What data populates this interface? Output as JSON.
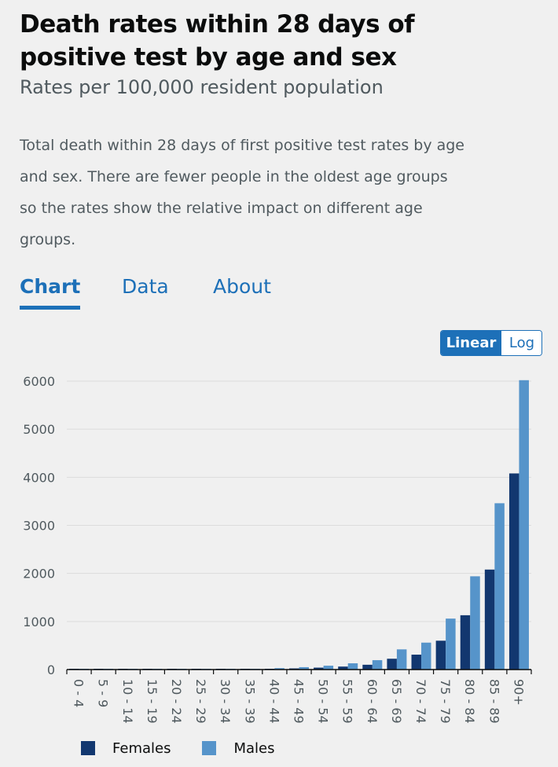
{
  "header": {
    "title": "Death rates within 28 days of positive test by age and sex",
    "subtitle": "Rates per 100,000 resident population",
    "description": "Total death within 28 days of first positive test rates by age and sex. There are fewer people in the oldest age groups so the rates show the relative impact on different age groups."
  },
  "tabs": [
    {
      "label": "Chart",
      "active": true
    },
    {
      "label": "Data",
      "active": false
    },
    {
      "label": "About",
      "active": false
    }
  ],
  "scale_toggle": {
    "linear_label": "Linear",
    "log_label": "Log",
    "selected": "Linear"
  },
  "colors": {
    "females": "#12376f",
    "males": "#5694ca",
    "accent": "#1d70b8"
  },
  "legend": [
    {
      "label": "Females",
      "color": "#12376f"
    },
    {
      "label": "Males",
      "color": "#5694ca"
    }
  ],
  "chart_data": {
    "type": "bar",
    "categories": [
      "0 - 4",
      "5 - 9",
      "10 - 14",
      "15 - 19",
      "20 - 24",
      "25 - 29",
      "30 - 34",
      "35 - 39",
      "40 - 44",
      "45 - 49",
      "50 - 54",
      "55 - 59",
      "60 - 64",
      "65 - 69",
      "70 - 74",
      "75 - 79",
      "80 - 84",
      "85 - 89",
      "90+"
    ],
    "series": [
      {
        "name": "Females",
        "values": [
          1,
          0,
          1,
          1,
          2,
          3,
          5,
          7,
          13,
          24,
          40,
          62,
          100,
          225,
          310,
          600,
          1130,
          2080,
          4080
        ]
      },
      {
        "name": "Males",
        "values": [
          1,
          0,
          1,
          1,
          3,
          5,
          8,
          14,
          30,
          50,
          80,
          130,
          195,
          420,
          560,
          1060,
          1940,
          3460,
          6020
        ]
      }
    ],
    "yticks": [
      0,
      1000,
      2000,
      3000,
      4000,
      5000,
      6000
    ],
    "ylim": [
      0,
      6000
    ],
    "grid": true,
    "legend_position": "bottom-left"
  }
}
